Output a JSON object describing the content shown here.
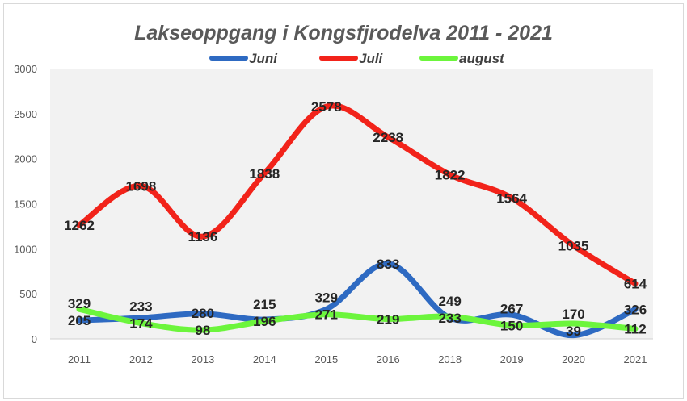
{
  "chart_data": {
    "type": "line",
    "title": "Lakseoppgang i Kongsfjrodelva 2011 - 2021",
    "categories": [
      "2011",
      "2012",
      "2013",
      "2014",
      "2015",
      "2016",
      "2018",
      "2019",
      "2020",
      "2021"
    ],
    "ylim": [
      0,
      3000
    ],
    "yticks": [
      0,
      500,
      1000,
      1500,
      2000,
      2500,
      3000
    ],
    "grid": false,
    "smooth": true,
    "legend_position": "top",
    "series": [
      {
        "name": "Juni",
        "color": "#2e6ac2",
        "values": [
          205,
          233,
          280,
          215,
          329,
          833,
          233,
          267,
          39,
          326
        ]
      },
      {
        "name": "Juli",
        "color": "#f2231a",
        "values": [
          1262,
          1698,
          1136,
          1838,
          2578,
          2238,
          1822,
          1564,
          1035,
          614
        ]
      },
      {
        "name": "august",
        "color": "#6cf53c",
        "values": [
          329,
          174,
          98,
          196,
          271,
          219,
          249,
          150,
          170,
          112
        ]
      }
    ],
    "plot_background": "#f2f2f2"
  }
}
